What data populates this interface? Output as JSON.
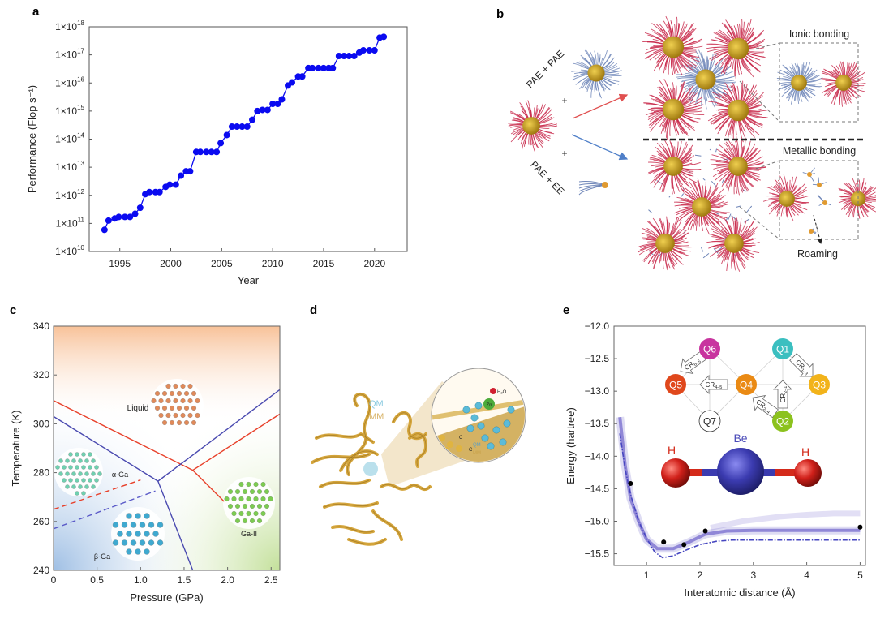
{
  "panels": {
    "a": {
      "label": "a"
    },
    "b": {
      "label": "b",
      "route_top": "PAE + PAE",
      "route_bottom": "PAE + EE",
      "plus": "+",
      "inset_top": "Ionic bonding",
      "inset_bottom": "Metallic bonding",
      "roaming": "Roaming",
      "colors": {
        "pae": "#c8284a",
        "pae_partner": "#6f86b8",
        "core": "#c9a21e",
        "arrow_top": "#e05050",
        "arrow_bottom": "#4f7fc8"
      }
    },
    "c": {
      "label": "c",
      "phase_labels": {
        "liquid": "Liquid",
        "alpha": "α-Ga",
        "beta": "β-Ga",
        "ga2": "Ga-II"
      }
    },
    "d": {
      "label": "d",
      "qm": "QM",
      "mm": "MM",
      "zn": "Zn",
      "h2o": "H₂O",
      "c": "C",
      "colors": {
        "qm": "#8ccbe0",
        "mm": "#d8b46a",
        "protein": "#d4a53c"
      }
    },
    "e": {
      "label": "e",
      "atoms": {
        "h_left": "H",
        "be": "Be",
        "h_right": "H"
      },
      "nodes": [
        {
          "id": "Q1",
          "color": "#3bbfc0"
        },
        {
          "id": "Q2",
          "color": "#8cc21e"
        },
        {
          "id": "Q3",
          "color": "#f2b31a"
        },
        {
          "id": "Q4",
          "color": "#ea8a14"
        },
        {
          "id": "Q5",
          "color": "#e0481c"
        },
        {
          "id": "Q6",
          "color": "#c8359f"
        },
        {
          "id": "Q7",
          "color": "#ffffff"
        }
      ],
      "arrows": [
        {
          "base": "CR",
          "sub": "6–5"
        },
        {
          "base": "CR",
          "sub": "4–5"
        },
        {
          "base": "CR",
          "sub": "1–3"
        },
        {
          "base": "CR",
          "sub": "2–1"
        },
        {
          "base": "CR",
          "sub": "2–4"
        }
      ]
    }
  },
  "chart_data": [
    {
      "id": "a",
      "type": "line",
      "xlabel": "Year",
      "ylabel": "Performance (Flop s⁻¹)",
      "xlim": [
        1992,
        2023.2
      ],
      "ylim": [
        10000000000.0,
        1e+18
      ],
      "yscale": "log",
      "xticks": [
        1995,
        2000,
        2005,
        2010,
        2015,
        2020
      ],
      "yticks": [
        10000000000.0,
        100000000000.0,
        1000000000000.0,
        10000000000000.0,
        100000000000000.0,
        1000000000000000.0,
        1e+16,
        1e+17,
        1e+18
      ],
      "ytick_prefix": "1×10",
      "grid": false,
      "color": "#0a0af0",
      "x": [
        1993.5,
        1993.9,
        1994.5,
        1994.9,
        1995.5,
        1996.0,
        1996.5,
        1997.0,
        1997.5,
        1997.9,
        1998.5,
        1998.9,
        1999.5,
        1999.9,
        2000.5,
        2001.0,
        2001.5,
        2001.9,
        2002.5,
        2002.9,
        2003.5,
        2004.0,
        2004.5,
        2004.9,
        2005.5,
        2006.0,
        2006.5,
        2007.0,
        2007.5,
        2008.0,
        2008.5,
        2009.0,
        2009.5,
        2010.0,
        2010.5,
        2010.9,
        2011.5,
        2011.9,
        2012.5,
        2012.9,
        2013.5,
        2013.9,
        2014.5,
        2015.0,
        2015.5,
        2015.9,
        2016.5,
        2017.0,
        2017.5,
        2018.0,
        2018.5,
        2018.9,
        2019.5,
        2020.0,
        2020.5,
        2020.9
      ],
      "y": [
        59000000000.0,
        126000000000.0,
        150000000000.0,
        170000000000.0,
        170000000000.0,
        170000000000.0,
        220000000000.0,
        360000000000.0,
        1100000000000.0,
        1300000000000.0,
        1300000000000.0,
        1300000000000.0,
        2000000000000.0,
        2400000000000.0,
        2400000000000.0,
        5000000000000.0,
        7200000000000.0,
        7200000000000.0,
        35000000000000.0,
        35000000000000.0,
        35000000000000.0,
        35000000000000.0,
        35000000000000.0,
        72000000000000.0,
        140000000000000.0,
        280000000000000.0,
        280000000000000.0,
        280000000000000.0,
        280000000000000.0,
        490000000000000.0,
        1000000000000000.0,
        1100000000000000.0,
        1100000000000000.0,
        1800000000000000.0,
        1800000000000000.0,
        2600000000000000.0,
        8100000000000000.0,
        1.05e+16,
        1.7e+16,
        1.7e+16,
        3.4e+16,
        3.4e+16,
        3.4e+16,
        3.4e+16,
        3.4e+16,
        3.4e+16,
        9.1e+16,
        9.1e+16,
        9.1e+16,
        9.1e+16,
        1.2e+17,
        1.45e+17,
        1.45e+17,
        1.45e+17,
        4.1e+17,
        4.4e+17
      ]
    },
    {
      "id": "c",
      "type": "line",
      "xlabel": "Pressure (GPa)",
      "ylabel": "Temperature (K)",
      "xlim": [
        0,
        2.6
      ],
      "ylim": [
        240,
        340
      ],
      "xticks": [
        0,
        0.5,
        1.0,
        1.5,
        2.0,
        2.5
      ],
      "xtick_labels": [
        "0",
        "0.5",
        "1.0",
        "1.5",
        "2.0",
        "2.5"
      ],
      "yticks": [
        240,
        260,
        280,
        300,
        320,
        340
      ],
      "grid": false,
      "series": [
        {
          "color": "#e8402a",
          "style": "solid",
          "points": [
            [
              0,
              309.5
            ],
            [
              1.6,
              281
            ],
            [
              2.6,
              304
            ]
          ]
        },
        {
          "color": "#e8402a",
          "style": "solid",
          "points": [
            [
              1.6,
              281
            ],
            [
              1.96,
              268.2
            ]
          ]
        },
        {
          "color": "#4a4ab0",
          "style": "solid",
          "points": [
            [
              0,
              303
            ],
            [
              1.2,
              276.5
            ],
            [
              2.6,
              314
            ]
          ]
        },
        {
          "color": "#4a4ab0",
          "style": "solid",
          "points": [
            [
              1.2,
              276.5
            ],
            [
              1.6,
              240
            ]
          ]
        },
        {
          "color": "#e8402a",
          "style": "dashed",
          "points": [
            [
              0,
              265
            ],
            [
              1.0,
              277
            ]
          ]
        },
        {
          "color": "#5a5ac8",
          "style": "dashed",
          "points": [
            [
              0,
              257
            ],
            [
              1.17,
              272.5
            ]
          ]
        }
      ]
    },
    {
      "id": "e",
      "type": "line",
      "xlabel": "Interatomic distance (Å)",
      "ylabel": "Energy (hartree)",
      "xlim": [
        0.39,
        5.1
      ],
      "ylim": [
        -15.68,
        -12.0
      ],
      "xticks": [
        1,
        2,
        3,
        4,
        5
      ],
      "yticks": [
        -12.0,
        -12.5,
        -13.0,
        -13.5,
        -14.0,
        -14.5,
        -15.0,
        -15.5
      ],
      "ytick_labels": [
        "−12.0",
        "−12.5",
        "−13.0",
        "−13.5",
        "−14.0",
        "−14.5",
        "−15.0",
        "−15.5"
      ],
      "grid": false,
      "reference_curve": {
        "color": "#4646c0",
        "style": "dash-dot",
        "points": [
          [
            0.5,
            -13.65
          ],
          [
            0.6,
            -14.2
          ],
          [
            0.7,
            -14.59
          ],
          [
            0.85,
            -15.0
          ],
          [
            1.0,
            -15.26
          ],
          [
            1.15,
            -15.47
          ],
          [
            1.3,
            -15.56
          ],
          [
            1.5,
            -15.53
          ],
          [
            1.75,
            -15.44
          ],
          [
            2.0,
            -15.36
          ],
          [
            2.3,
            -15.31
          ],
          [
            2.6,
            -15.29
          ],
          [
            3,
            -15.29
          ],
          [
            4,
            -15.29
          ],
          [
            5,
            -15.29
          ]
        ]
      },
      "density_band": {
        "color": "#5b4fc4",
        "points": [
          [
            0.5,
            -13.4
          ],
          [
            0.6,
            -14.15
          ],
          [
            0.7,
            -14.65
          ],
          [
            0.85,
            -15.0
          ],
          [
            1.0,
            -15.28
          ],
          [
            1.2,
            -15.42
          ],
          [
            1.5,
            -15.42
          ],
          [
            1.8,
            -15.32
          ],
          [
            2.1,
            -15.2
          ],
          [
            2.5,
            -15.15
          ],
          [
            3,
            -15.14
          ],
          [
            4,
            -15.14
          ],
          [
            5,
            -15.14
          ]
        ]
      },
      "density_band_upper": {
        "color": "#8a80d8",
        "points": [
          [
            2.2,
            -15.1
          ],
          [
            2.8,
            -15.0
          ],
          [
            3.5,
            -14.93
          ],
          [
            4,
            -14.9
          ],
          [
            4.5,
            -14.88
          ],
          [
            5,
            -14.88
          ]
        ]
      },
      "markers": {
        "color": "#000000",
        "points": [
          [
            0.7,
            -14.42
          ],
          [
            1.32,
            -15.32
          ],
          [
            1.7,
            -15.36
          ],
          [
            2.1,
            -15.15
          ],
          [
            5.0,
            -15.09
          ]
        ]
      }
    }
  ]
}
